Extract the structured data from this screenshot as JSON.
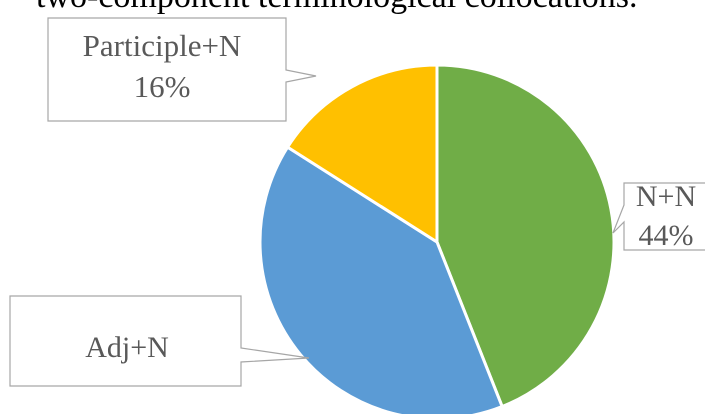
{
  "page_text": {
    "cropped_heading": "two-component terminological collocations."
  },
  "chart_data": {
    "type": "pie",
    "categories": [
      "N+N",
      "Adj+N",
      "Participle+N"
    ],
    "values": [
      44,
      40,
      16
    ],
    "unit": "%",
    "colors": [
      "#70AD47",
      "#5B9BD5",
      "#FFC000"
    ],
    "data_labels": [
      {
        "category": "N+N",
        "value_text": "44%"
      },
      {
        "category": "Adj+N",
        "value_text": ""
      },
      {
        "category": "Participle+N",
        "value_text": "16%"
      }
    ],
    "start_angle": "12 o'clock",
    "direction": "clockwise",
    "legend": "none",
    "label_style": "callouts"
  }
}
